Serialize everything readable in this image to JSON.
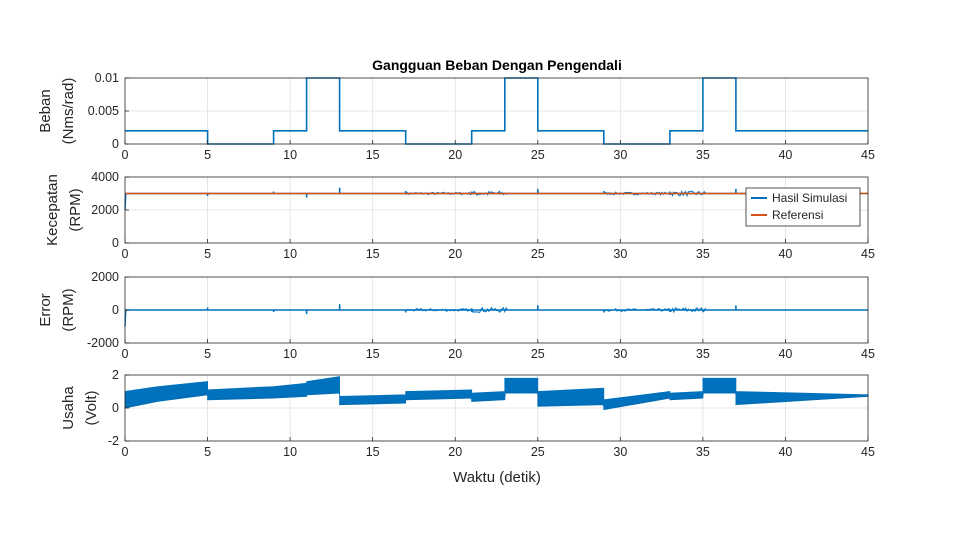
{
  "figure_title": "Gangguan Beban Dengan Pengendali",
  "xlabel": "Waktu (detik)",
  "colors": {
    "sim": "#0072BD",
    "ref": "#D95319",
    "axis": "#262626",
    "grid": "#dfdfdf"
  },
  "chart_data": [
    {
      "type": "line",
      "title": "Gangguan Beban Dengan Pengendali",
      "ylabel": [
        "Beban",
        "(Nms/rad)"
      ],
      "xlim": [
        0,
        45
      ],
      "ylim": [
        0,
        0.01
      ],
      "xticks": [
        "0",
        "5",
        "10",
        "15",
        "20",
        "25",
        "30",
        "35",
        "40",
        "45"
      ],
      "yticks": [
        "0",
        "0.005",
        "0.01"
      ],
      "grid": true,
      "series": [
        {
          "values_x": [
            0,
            5,
            5,
            9,
            9,
            11,
            11,
            13,
            13,
            17,
            17,
            21,
            21,
            23,
            23,
            25,
            25,
            29,
            29,
            33,
            33,
            35,
            35,
            37,
            37,
            45
          ],
          "values_y": [
            0.002,
            0.002,
            0,
            0,
            0.002,
            0.002,
            0.01,
            0.01,
            0.002,
            0.002,
            0,
            0,
            0.002,
            0.002,
            0.01,
            0.01,
            0.002,
            0.002,
            0,
            0,
            0.002,
            0.002,
            0.01,
            0.01,
            0.002,
            0.002
          ]
        }
      ]
    },
    {
      "type": "line",
      "ylabel": [
        "Kecepatan",
        "(RPM)"
      ],
      "xlim": [
        0,
        45
      ],
      "ylim": [
        0,
        4000
      ],
      "xticks": [
        "0",
        "5",
        "10",
        "15",
        "20",
        "25",
        "30",
        "35",
        "40",
        "45"
      ],
      "yticks": [
        "0",
        "2000",
        "4000"
      ],
      "grid": true,
      "legend": {
        "placement": "top-right",
        "entries": [
          "Hasil Simulasi",
          "Referensi"
        ]
      },
      "series": [
        {
          "name": "Hasil Simulasi",
          "baseline": 3000,
          "start_value": 2000,
          "spikes": [
            {
              "x": 5,
              "dy": -150
            },
            {
              "x": 9,
              "dy": 120
            },
            {
              "x": 11,
              "dy": -250
            },
            {
              "x": 13,
              "dy": 350
            },
            {
              "x": 17,
              "dy": 150
            },
            {
              "x": 21,
              "dy": 120
            },
            {
              "x": 25,
              "dy": 280
            },
            {
              "x": 29,
              "dy": 150
            },
            {
              "x": 33,
              "dy": 120
            },
            {
              "x": 37,
              "dy": 280
            }
          ],
          "noise": [
            {
              "x0": 17,
              "x1": 21,
              "amp": 80
            },
            {
              "x0": 21,
              "x1": 23.2,
              "amp": 150
            },
            {
              "x0": 29,
              "x1": 33,
              "amp": 80
            },
            {
              "x0": 33,
              "x1": 35.2,
              "amp": 150
            }
          ]
        },
        {
          "name": "Referensi",
          "values_x": [
            0,
            45
          ],
          "values_y": [
            3000,
            3000
          ]
        }
      ]
    },
    {
      "type": "line",
      "ylabel": [
        "Error",
        "(RPM)"
      ],
      "xlim": [
        0,
        45
      ],
      "ylim": [
        -2000,
        2000
      ],
      "xticks": [
        "0",
        "5",
        "10",
        "15",
        "20",
        "25",
        "30",
        "35",
        "40",
        "45"
      ],
      "yticks": [
        "-2000",
        "0",
        "2000"
      ],
      "grid": true,
      "series": [
        {
          "baseline": 0,
          "start_value": -1000,
          "spikes": [
            {
              "x": 5,
              "dy": 150
            },
            {
              "x": 9,
              "dy": -120
            },
            {
              "x": 11,
              "dy": -250
            },
            {
              "x": 13,
              "dy": 350
            },
            {
              "x": 17,
              "dy": -150
            },
            {
              "x": 21,
              "dy": -120
            },
            {
              "x": 25,
              "dy": 280
            },
            {
              "x": 29,
              "dy": -150
            },
            {
              "x": 33,
              "dy": -120
            },
            {
              "x": 37,
              "dy": 280
            }
          ],
          "noise": [
            {
              "x0": 17,
              "x1": 21,
              "amp": 80
            },
            {
              "x0": 21,
              "x1": 23.2,
              "amp": 150
            },
            {
              "x0": 29,
              "x1": 33,
              "amp": 80
            },
            {
              "x0": 33,
              "x1": 35.2,
              "amp": 150
            }
          ]
        }
      ]
    },
    {
      "type": "area",
      "ylabel": [
        "Usaha",
        "(Volt)"
      ],
      "xlim": [
        0,
        45
      ],
      "ylim": [
        -2,
        2
      ],
      "xticks": [
        "0",
        "5",
        "10",
        "15",
        "20",
        "25",
        "30",
        "35",
        "40",
        "45"
      ],
      "yticks": [
        "-2",
        "0",
        "2"
      ],
      "grid": true,
      "series": [
        {
          "envelope_x": [
            0,
            2,
            5,
            5,
            9,
            11,
            11,
            13,
            13,
            17,
            17,
            21,
            21,
            23,
            23,
            25,
            25,
            29,
            29,
            33,
            33,
            35,
            35,
            37,
            37,
            45
          ],
          "envelope_upper": [
            1.0,
            1.3,
            1.6,
            1.1,
            1.3,
            1.5,
            1.6,
            1.9,
            0.7,
            0.8,
            1.0,
            1.1,
            0.9,
            1.0,
            1.8,
            1.8,
            1.0,
            1.2,
            0.5,
            1.0,
            0.9,
            1.0,
            1.8,
            1.8,
            1.0,
            0.8
          ],
          "envelope_lower": [
            0.0,
            0.4,
            0.8,
            0.5,
            0.6,
            0.7,
            0.8,
            0.9,
            0.2,
            0.3,
            0.5,
            0.6,
            0.4,
            0.5,
            0.9,
            0.9,
            0.1,
            0.2,
            -0.1,
            0.6,
            0.5,
            0.6,
            0.9,
            0.9,
            0.2,
            0.7
          ]
        }
      ]
    }
  ]
}
